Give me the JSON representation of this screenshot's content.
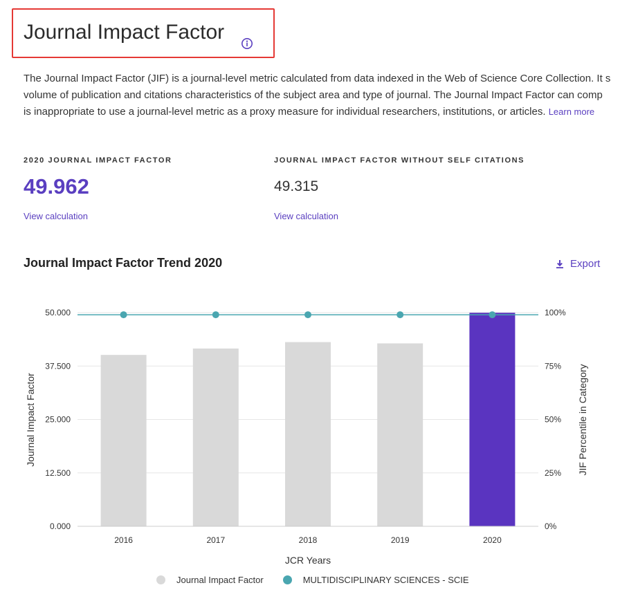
{
  "header": {
    "title": "Journal Impact Factor"
  },
  "description": {
    "line1": "The Journal Impact Factor (JIF) is a journal-level metric calculated from data indexed in the Web of Science Core Collection. It s",
    "line2": "volume of publication and citations characteristics of the subject area and type of journal. The Journal Impact Factor can comp",
    "line3": "is inappropriate to use a journal-level metric as a proxy measure for individual researchers, institutions, or articles.",
    "learn_more": "Learn more"
  },
  "metrics": {
    "jif_label": "2020 JOURNAL IMPACT FACTOR",
    "jif_value": "49.962",
    "jif_link": "View calculation",
    "self_label": "JOURNAL IMPACT FACTOR WITHOUT SELF CITATIONS",
    "self_value": "49.315",
    "self_link": "View calculation"
  },
  "chart_section": {
    "title": "Journal Impact Factor Trend 2020",
    "export_label": "Export"
  },
  "colors": {
    "accent": "#5a34c0",
    "bar_grey": "#d9d9d9",
    "line_teal": "#4aa6b0"
  },
  "chart_data": {
    "type": "bar",
    "categories": [
      "2016",
      "2017",
      "2018",
      "2019",
      "2020"
    ],
    "series": [
      {
        "name": "Journal Impact Factor",
        "axis": "left",
        "type": "bar",
        "values": [
          40.1,
          41.6,
          43.1,
          42.8,
          49.962
        ],
        "highlight_index": 4
      },
      {
        "name": "MULTIDISCIPLINARY SCIENCES - SCIE",
        "axis": "right",
        "type": "line",
        "values": [
          99,
          99,
          99,
          99,
          99
        ]
      }
    ],
    "xlabel": "JCR Years",
    "ylabel": "Journal Impact Factor",
    "y2label": "JIF Percentile in Category",
    "ylim": [
      0,
      50
    ],
    "y2lim": [
      0,
      100
    ],
    "yticks": [
      "0.000",
      "12.500",
      "25.000",
      "37.500",
      "50.000"
    ],
    "y2ticks": [
      "0%",
      "25%",
      "50%",
      "75%",
      "100%"
    ],
    "grid": true,
    "legend": "bottom-center"
  }
}
